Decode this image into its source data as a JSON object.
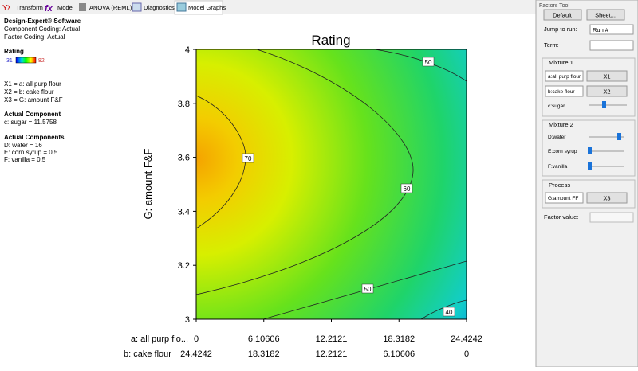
{
  "tabs": [
    "Transform",
    "Model",
    "ANOVA (REML)",
    "Diagnostics",
    "Model Graphs"
  ],
  "info": {
    "software": "Design-Expert® Software",
    "lines": [
      "Component Coding: Actual",
      "Factor Coding: Actual"
    ],
    "legend_title": "Rating",
    "legend_min": "31",
    "legend_max": "82",
    "factors": [
      "X1 = a: all purp flour",
      "X2 = b: cake flour",
      "X3 = G: amount F&F"
    ],
    "actual_component_title": "Actual Component",
    "actual_component": [
      "c: sugar = 11.5758"
    ],
    "actual_components_title": "Actual Components",
    "actual_components": [
      "D: water = 16",
      "E: corn syrup = 0.5",
      "F: vanilla = 0.5"
    ]
  },
  "plot": {
    "title": "Rating",
    "y_label": "G: amount F&F",
    "ylim": [
      3,
      4
    ],
    "yticks": [
      3,
      3.2,
      3.4,
      3.6,
      3.8,
      4
    ],
    "x1_label": "a: all purp flo...",
    "x1lim": [
      0,
      24.4242
    ],
    "x1ticks": [
      0,
      6.10606,
      12.2121,
      18.3182,
      24.4242
    ],
    "x2_label": "b: cake flour",
    "x2lim": [
      24.4242,
      0
    ],
    "x2ticks": [
      24.4242,
      18.3182,
      12.2121,
      6.10606,
      0
    ],
    "contour_labels": [
      "70",
      "60",
      "50",
      "50",
      "40"
    ]
  },
  "factors_tool": {
    "title": "Factors Tool",
    "default_button": "Default",
    "sheet_button": "Sheet...",
    "jump_label": "Jump to run:",
    "jump_value": "Run #",
    "term_label": "Term:",
    "mixture1": {
      "title": "Mixture 1",
      "a": "a:all purp flour",
      "a_value": "X1",
      "b": "b:cake flour",
      "b_value": "X2",
      "c": "c:sugar"
    },
    "mixture2": {
      "title": "Mixture 2",
      "d": "D:water",
      "e": "E:corn syrup",
      "f": "F:vanilla"
    },
    "process": {
      "title": "Process",
      "g": "G:amount FF",
      "g_value": "X3"
    },
    "factor_value_label": "Factor value:"
  }
}
